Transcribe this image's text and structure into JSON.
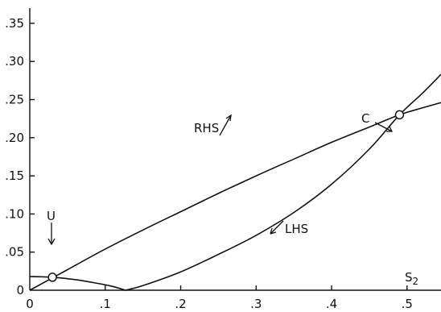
{
  "chart_data": {
    "type": "line",
    "title": "",
    "xlabel": "S2",
    "ylabel": "",
    "xlim": [
      0,
      0.545
    ],
    "ylim": [
      0,
      0.37
    ],
    "x_ticks": [
      0,
      0.1,
      0.2,
      0.3,
      0.4,
      0.5
    ],
    "x_tick_labels": [
      "0",
      ".1",
      ".2",
      ".3",
      ".4",
      ".5"
    ],
    "y_ticks": [
      0,
      0.05,
      0.1,
      0.15,
      0.2,
      0.25,
      0.3,
      0.35
    ],
    "y_tick_labels": [
      "0",
      ".05",
      ".10",
      ".15",
      ".20",
      ".25",
      ".30",
      ".35"
    ],
    "grid": false,
    "series": [
      {
        "name": "RHS",
        "x": [
          0,
          0.05,
          0.1,
          0.15,
          0.2,
          0.25,
          0.3,
          0.35,
          0.4,
          0.45,
          0.49,
          0.52,
          0.545
        ],
        "y": [
          0,
          0.027,
          0.054,
          0.079,
          0.103,
          0.127,
          0.15,
          0.172,
          0.194,
          0.214,
          0.23,
          0.239,
          0.246
        ]
      },
      {
        "name": "LHS",
        "x": [
          0,
          0.03,
          0.06,
          0.09,
          0.11,
          0.127,
          0.15,
          0.2,
          0.25,
          0.3,
          0.35,
          0.4,
          0.45,
          0.49,
          0.52,
          0.545
        ],
        "y": [
          0.018,
          0.017,
          0.014,
          0.009,
          0.005,
          0,
          0.006,
          0.024,
          0.047,
          0.072,
          0.102,
          0.139,
          0.185,
          0.23,
          0.258,
          0.283
        ]
      }
    ],
    "points": [
      {
        "label": "U",
        "x": 0.03,
        "y": 0.017
      },
      {
        "label": "C",
        "x": 0.49,
        "y": 0.23
      }
    ]
  },
  "annotations": {
    "rhs_label": "RHS",
    "lhs_label": "LHS",
    "u_label": "U",
    "c_label": "C",
    "x_axis_label_main": "S",
    "x_axis_label_sub": "2"
  }
}
